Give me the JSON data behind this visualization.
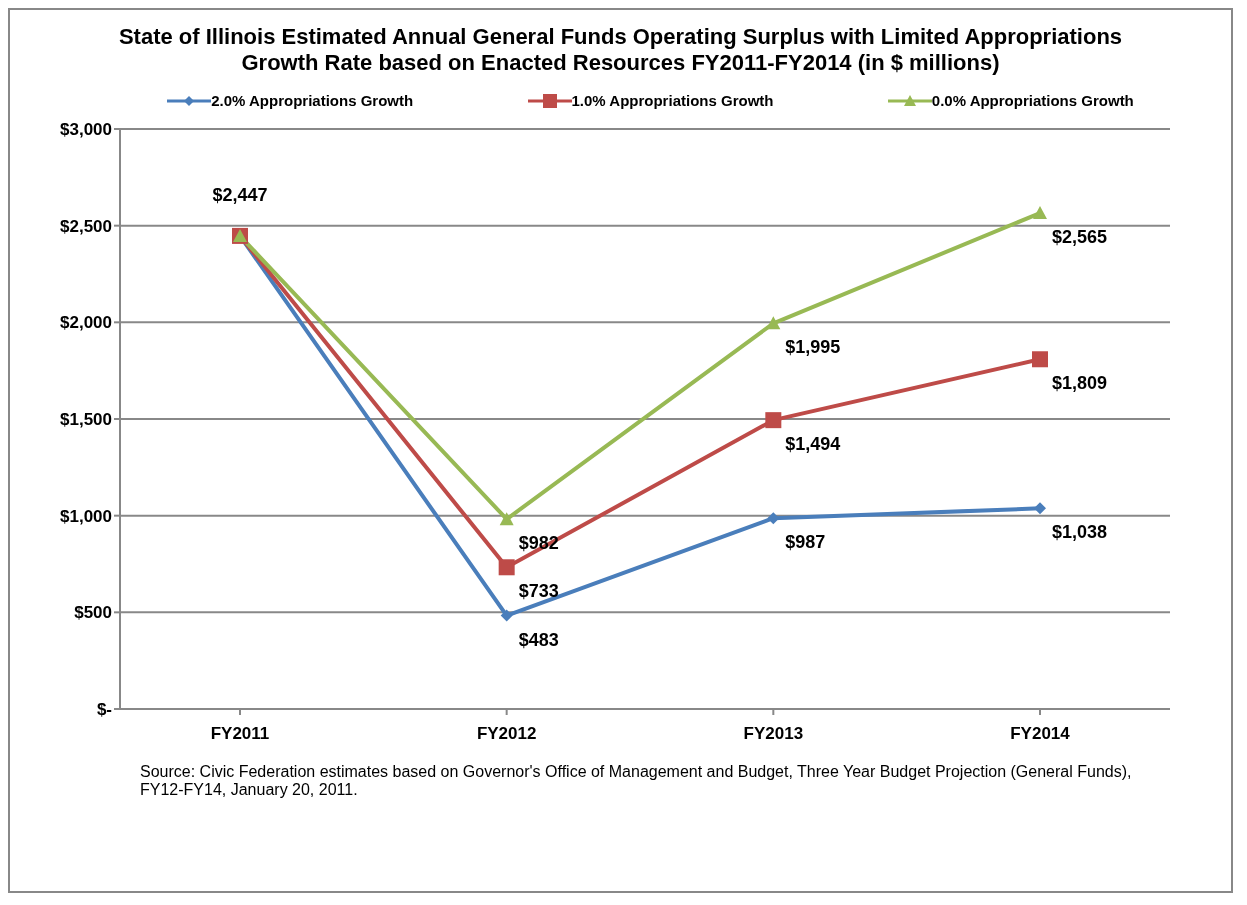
{
  "chart_data": {
    "type": "line",
    "title": "State of Illinois Estimated Annual General Funds Operating Surplus with Limited Appropriations Growth Rate based on Enacted Resources FY2011-FY2014 (in $ millions)",
    "categories": [
      "FY2011",
      "FY2012",
      "FY2013",
      "FY2014"
    ],
    "series": [
      {
        "name": "2.0% Appropriations Growth",
        "color": "#4a7ebb",
        "marker": "diamond",
        "values": [
          2447,
          483,
          987,
          1038
        ],
        "value_labels": [
          "$2,447",
          "$483",
          "$987",
          "$1,038"
        ]
      },
      {
        "name": "1.0% Appropriations Growth",
        "color": "#be4b48",
        "marker": "square",
        "values": [
          2447,
          733,
          1494,
          1809
        ],
        "value_labels": [
          null,
          "$733",
          "$1,494",
          "$1,809"
        ]
      },
      {
        "name": "0.0% Appropriations Growth",
        "color": "#98b954",
        "marker": "triangle",
        "values": [
          2447,
          982,
          1995,
          2565
        ],
        "value_labels": [
          null,
          "$982",
          "$1,995",
          "$2,565"
        ]
      }
    ],
    "ylim": [
      0,
      3000
    ],
    "yticks": [
      {
        "value": 0,
        "label": "$-"
      },
      {
        "value": 500,
        "label": "$500"
      },
      {
        "value": 1000,
        "label": "$1,000"
      },
      {
        "value": 1500,
        "label": "$1,500"
      },
      {
        "value": 2000,
        "label": "$2,000"
      },
      {
        "value": 2500,
        "label": "$2,500"
      },
      {
        "value": 3000,
        "label": "$3,000"
      }
    ],
    "grid": "y",
    "legend": "top",
    "line_style": "solid",
    "annotations": [
      "Source: Civic Federation estimates based on Governor's Office of Management and Budget, Three Year Budget Projection (General Funds), FY12-FY14, January 20, 2011."
    ]
  }
}
